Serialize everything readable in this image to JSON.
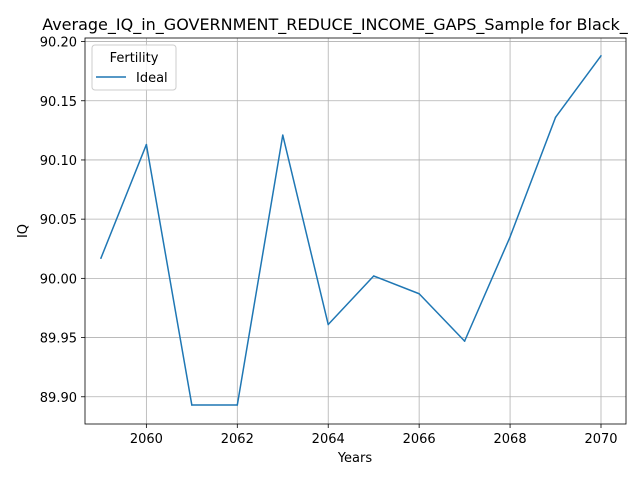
{
  "chart_data": {
    "type": "line",
    "title": "Average_IQ_in_GOVERNMENT_REDUCE_INCOME_GAPS_Sample for Black_",
    "xlabel": "Years",
    "ylabel": "IQ",
    "xlim": [
      2058.65,
      2070.55
    ],
    "ylim": [
      89.877,
      90.203
    ],
    "x_ticks": [
      2060,
      2062,
      2064,
      2066,
      2068,
      2070
    ],
    "y_ticks": [
      89.9,
      89.95,
      90.0,
      90.05,
      90.1,
      90.15,
      90.2
    ],
    "x_tick_labels": [
      "2060",
      "2062",
      "2064",
      "2066",
      "2068",
      "2070"
    ],
    "y_tick_labels": [
      "89.90",
      "89.95",
      "90.00",
      "90.05",
      "90.10",
      "90.15",
      "90.20"
    ],
    "grid": true,
    "legend": {
      "title": "Fertility",
      "placement": "top-left"
    },
    "series": [
      {
        "name": "Ideal",
        "color": "#1f77b4",
        "x": [
          2059,
          2060,
          2061,
          2062,
          2063,
          2064,
          2065,
          2066,
          2067,
          2068,
          2069,
          2070
        ],
        "values": [
          90.017,
          90.113,
          89.893,
          89.893,
          90.121,
          89.961,
          90.002,
          89.987,
          89.947,
          90.035,
          90.136,
          90.188
        ]
      }
    ]
  }
}
